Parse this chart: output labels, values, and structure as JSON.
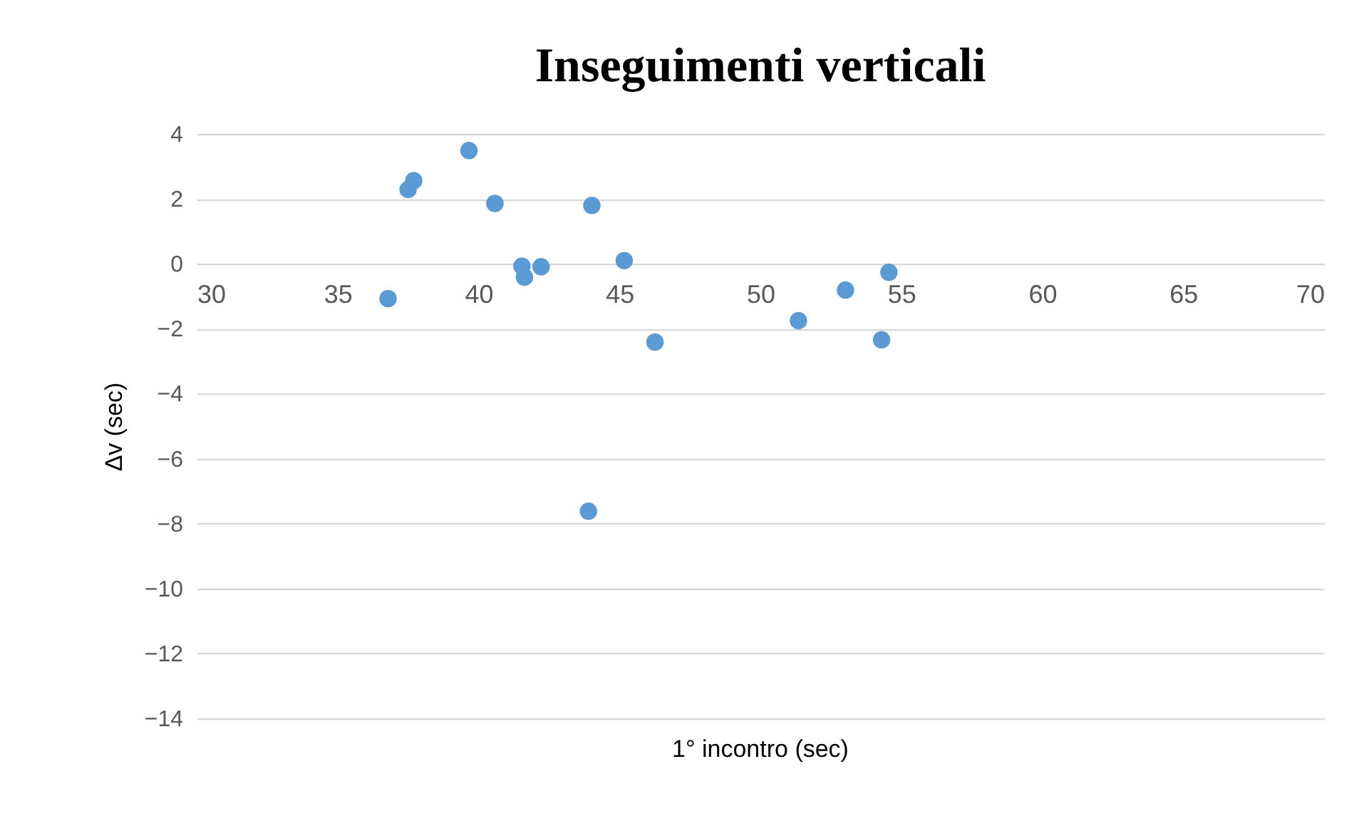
{
  "chart_data": {
    "type": "scatter",
    "title": "Inseguimenti verticali",
    "xlabel": "1° incontro (sec)",
    "ylabel": "Δv (sec)",
    "x": [
      36.79,
      37.5,
      37.7,
      39.66,
      40.58,
      41.54,
      41.63,
      42.22,
      44.02,
      43.9,
      45.17,
      46.26,
      51.35,
      53.02,
      54.56,
      54.3
    ],
    "series": [
      {
        "color": "#5b9bd5",
        "values": [
          -1.07,
          2.29,
          2.56,
          3.49,
          1.86,
          -0.07,
          -0.41,
          -0.09,
          1.8,
          -7.62,
          0.1,
          -2.41,
          -1.75,
          -0.81,
          -0.26,
          -2.34
        ]
      }
    ],
    "xlim": [
      30,
      70
    ],
    "xticks": [
      30,
      35,
      40,
      45,
      50,
      55,
      60,
      65,
      70
    ],
    "ylim": [
      -14,
      4
    ],
    "yticks": [
      -14,
      -12,
      -10,
      -8,
      -6,
      -4,
      -2,
      0,
      2,
      4
    ],
    "grid": "y",
    "legend": false,
    "marker": "circle"
  }
}
